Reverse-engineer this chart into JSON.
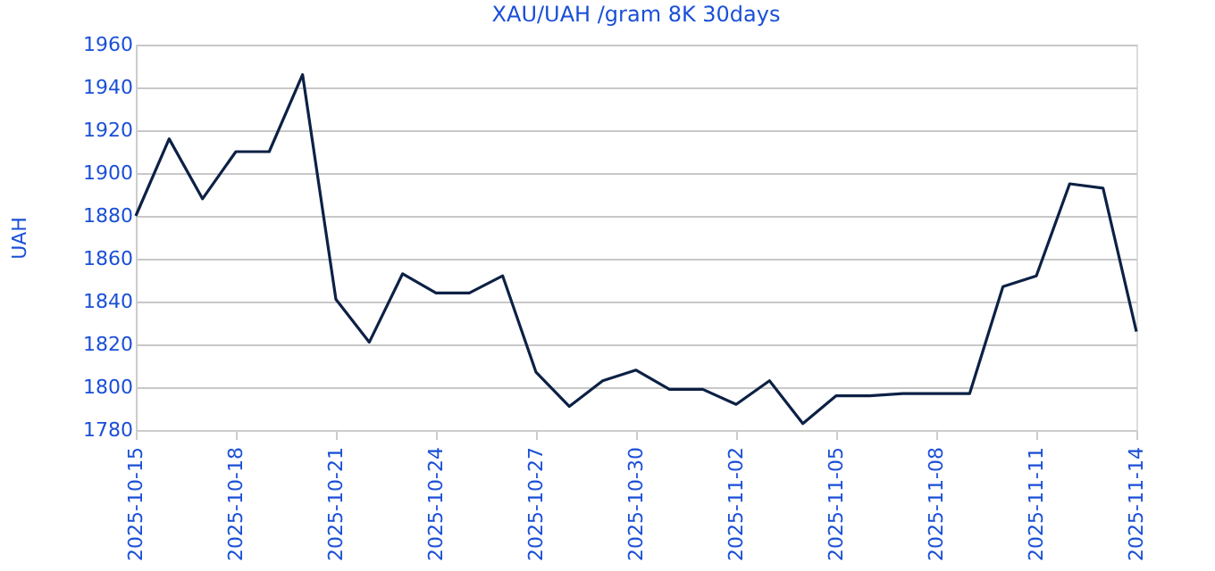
{
  "chart_data": {
    "type": "line",
    "title": "XAU/UAH /gram 8K 30days",
    "ylabel": "UAH",
    "x": [
      "2025-10-15",
      "2025-10-16",
      "2025-10-17",
      "2025-10-18",
      "2025-10-19",
      "2025-10-20",
      "2025-10-21",
      "2025-10-22",
      "2025-10-23",
      "2025-10-24",
      "2025-10-25",
      "2025-10-26",
      "2025-10-27",
      "2025-10-28",
      "2025-10-29",
      "2025-10-30",
      "2025-10-31",
      "2025-11-01",
      "2025-11-02",
      "2025-11-03",
      "2025-11-04",
      "2025-11-05",
      "2025-11-06",
      "2025-11-07",
      "2025-11-08",
      "2025-11-09",
      "2025-11-10",
      "2025-11-11",
      "2025-11-12",
      "2025-11-13",
      "2025-11-14"
    ],
    "series": [
      {
        "color": "#0d2145",
        "values": [
          1880,
          1916,
          1888,
          1910,
          1910,
          1946,
          1841,
          1821,
          1853,
          1844,
          1844,
          1852,
          1807,
          1791,
          1803,
          1808,
          1799,
          1799,
          1792,
          1803,
          1783,
          1796,
          1796,
          1797,
          1797,
          1797,
          1847,
          1852,
          1895,
          1893,
          1826
        ]
      }
    ],
    "xlim": [
      "2025-10-15",
      "2025-11-14"
    ],
    "xticks": [
      "2025-10-15",
      "2025-10-18",
      "2025-10-21",
      "2025-10-24",
      "2025-10-27",
      "2025-10-30",
      "2025-11-02",
      "2025-11-05",
      "2025-11-08",
      "2025-11-11",
      "2025-11-14"
    ],
    "ylim": [
      1780,
      1960
    ],
    "yticks": [
      1780,
      1800,
      1820,
      1840,
      1860,
      1880,
      1900,
      1920,
      1940,
      1960
    ],
    "grid": "y",
    "marker": "none",
    "line_style": "solid"
  }
}
